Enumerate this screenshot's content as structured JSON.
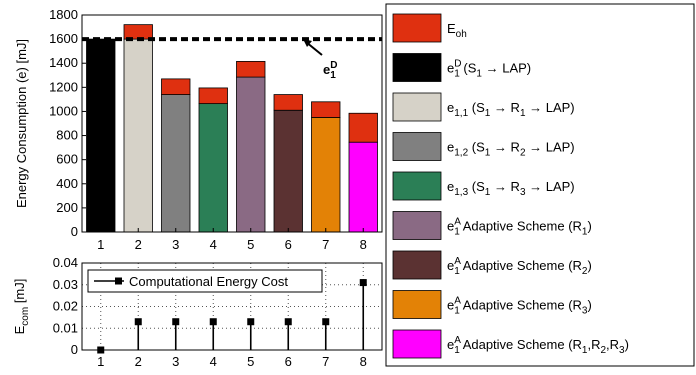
{
  "chart_data": [
    {
      "type": "stacked_bar",
      "categories": [
        "1",
        "2",
        "3",
        "4",
        "5",
        "6",
        "7",
        "8"
      ],
      "ylabel": "Energy Consumption (e) [mJ]",
      "ylim": [
        0,
        1800
      ],
      "yticks": [
        0,
        200,
        400,
        600,
        800,
        1000,
        1200,
        1400,
        1600,
        1800
      ],
      "series": [
        {
          "names": [
            [
              "e",
              {
                "sup": "D",
                "sub": "1"
              },
              " (S",
              {
                "sub": "1"
              },
              " → LAP)"
            ],
            [
              "e",
              {
                "sub": "1,1"
              },
              " (S",
              {
                "sub": "1"
              },
              " → R",
              {
                "sub": "1"
              },
              " → LAP)"
            ],
            [
              "e",
              {
                "sub": "1,2"
              },
              " (S",
              {
                "sub": "1"
              },
              " → R",
              {
                "sub": "2"
              },
              " → LAP)"
            ],
            [
              "e",
              {
                "sub": "1,3"
              },
              " (S",
              {
                "sub": "1"
              },
              " → R",
              {
                "sub": "3"
              },
              " → LAP)"
            ],
            [
              "e",
              {
                "sup": "A",
                "sub": "1"
              },
              " Adaptive Scheme (R",
              {
                "sub": "1"
              },
              ")"
            ],
            [
              "e",
              {
                "sup": "A",
                "sub": "1"
              },
              " Adaptive Scheme (R",
              {
                "sub": "2"
              },
              ")"
            ],
            [
              "e",
              {
                "sup": "A",
                "sub": "1"
              },
              " Adaptive Scheme (R",
              {
                "sub": "3"
              },
              ")"
            ],
            [
              "e",
              {
                "sup": "A",
                "sub": "1"
              },
              " Adaptive Scheme (R",
              {
                "sub": "1"
              },
              ",R",
              {
                "sub": "2"
              },
              ",R",
              {
                "sub": "3"
              },
              ")"
            ]
          ],
          "colors": [
            "#000000",
            "#d6d2c8",
            "#808080",
            "#2b7f56",
            "#8a6a84",
            "#5b3232",
            "#e38206",
            "#ff00ff"
          ],
          "values": [
            1600,
            1600,
            1140,
            1065,
            1285,
            1010,
            950,
            745
          ]
        },
        {
          "name": [
            "E",
            {
              "sub": "oh"
            }
          ],
          "color": "#df3010",
          "values": [
            0,
            120,
            130,
            130,
            130,
            130,
            130,
            240
          ]
        }
      ],
      "reference_line": {
        "value": 1600,
        "label": [
          "e",
          {
            "sup": "D",
            "sub": "1"
          }
        ]
      }
    },
    {
      "type": "stem",
      "x": [
        1,
        2,
        3,
        4,
        5,
        6,
        7,
        8
      ],
      "xlim": [
        0.5,
        8.5
      ],
      "xticks": [
        1,
        2,
        3,
        4,
        5,
        6,
        7,
        8
      ],
      "ylabel": [
        "E",
        {
          "sub": "com"
        },
        " [mJ]"
      ],
      "ylim": [
        0,
        0.04
      ],
      "yticks": [
        0,
        0.01,
        0.02,
        0.03,
        0.04
      ],
      "grid": true,
      "series": [
        {
          "name": "Computational Energy Cost",
          "color": "#000000",
          "values": [
            0,
            0.013,
            0.013,
            0.013,
            0.013,
            0.013,
            0.013,
            0.031
          ]
        }
      ]
    }
  ]
}
